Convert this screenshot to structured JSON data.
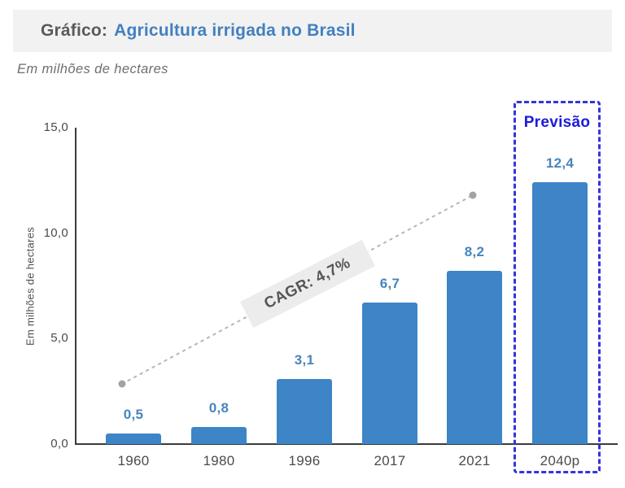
{
  "header": {
    "title_prefix": "Gráfico:",
    "title_main": "Agricultura irrigada no Brasil"
  },
  "subtitle": "Em milhões de hectares",
  "colors": {
    "bar": "#3d85c6",
    "value_label": "#4884bd",
    "title_main": "#4280bf",
    "title_prefix": "#5a5a5a",
    "header_bg": "#f2f2f2",
    "axis": "#3b3b3b",
    "trend_line": "#b5b5b5",
    "trend_dot": "#a3a3a3",
    "cagr_bg": "#ececec",
    "forecast_accent": "#2a2add"
  },
  "chart_data": {
    "type": "bar",
    "title": "Gráfico: Agricultura irrigada no Brasil",
    "subtitle": "Em milhões de hectares",
    "categories": [
      "1960",
      "1980",
      "1996",
      "2017",
      "2021",
      "2040p"
    ],
    "values": [
      0.5,
      0.8,
      3.1,
      6.7,
      8.2,
      12.4
    ],
    "value_labels": [
      "0,5",
      "0,8",
      "3,1",
      "6,7",
      "8,2",
      "12,4"
    ],
    "xlabel": "",
    "ylabel": "Em milhões de hectares",
    "ylim": [
      0,
      15
    ],
    "yticks": [
      {
        "value": 0,
        "label": "0,0"
      },
      {
        "value": 5,
        "label": "5,0"
      },
      {
        "value": 10,
        "label": "10,0"
      },
      {
        "value": 15,
        "label": "15,0"
      }
    ],
    "grid": false,
    "legend": null,
    "annotations": {
      "cagr": "CAGR: 4,7%",
      "forecast": "Previsão",
      "forecast_category": "2040p",
      "trend": "dotted line from 1960 to 2021 with endpoint dots"
    }
  }
}
